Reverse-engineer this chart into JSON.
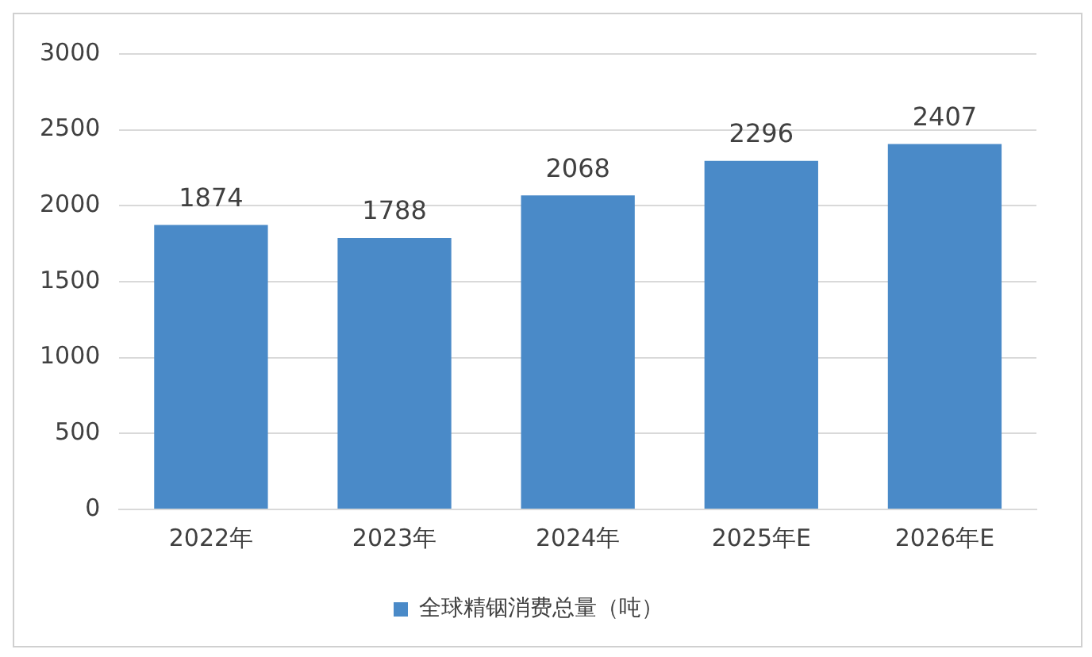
{
  "chart_data": {
    "type": "bar",
    "categories": [
      "2022年",
      "2023年",
      "2024年",
      "2025年E",
      "2026年E"
    ],
    "series": [
      {
        "name": "全球精铟消费总量（吨）",
        "color": "#4a8ac8",
        "values": [
          1874,
          1788,
          2068,
          2296,
          2407
        ]
      }
    ],
    "ylim": [
      0,
      3000
    ],
    "yticks": [
      0,
      500,
      1000,
      1500,
      2000,
      2500,
      3000
    ],
    "grid": "y",
    "legend": "bottom",
    "data_labels": true
  }
}
